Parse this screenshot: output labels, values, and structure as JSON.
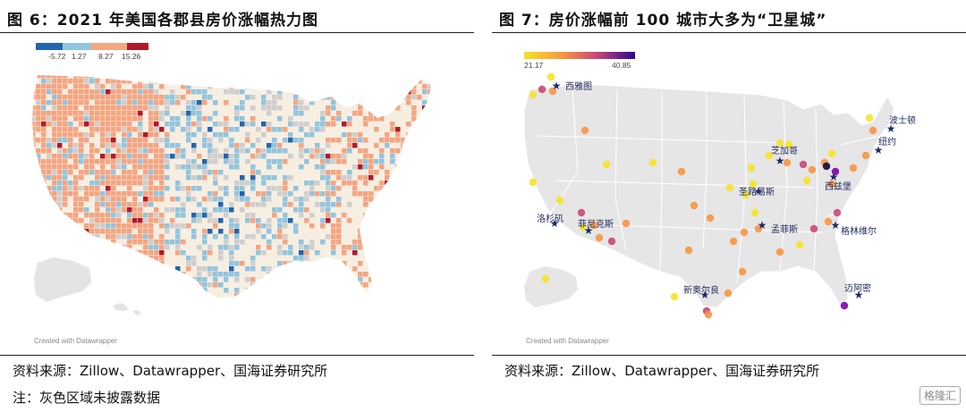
{
  "left": {
    "title": "图 6：2021 年美国各郡县房价涨幅热力图",
    "legend": {
      "ticks": [
        "-5.72",
        "1.27",
        "8.27",
        "15.26"
      ],
      "colors": [
        "#2166ac",
        "#92c5de",
        "#f4a582",
        "#b2182b"
      ]
    },
    "credit": "Created with Datawrapper",
    "source": "资料来源：Zillow、Datawrapper、国海证券研究所",
    "note": "注：灰色区域未披露数据"
  },
  "right": {
    "title": "图 7：房价涨幅前 100 城市大多为“卫星城”",
    "legend": {
      "min": "21.17",
      "max": "40.85"
    },
    "credit": "Created with Datawrapper",
    "source": "资料来源：Zillow、Datawrapper、国海证券研究所",
    "cities": [
      {
        "name": "西雅图"
      },
      {
        "name": "洛杉矶"
      },
      {
        "name": "菲尼克斯"
      },
      {
        "name": "芝加哥"
      },
      {
        "name": "圣路易斯"
      },
      {
        "name": "孟菲斯"
      },
      {
        "name": "西兹堡"
      },
      {
        "name": "格林维尔"
      },
      {
        "name": "波士顿"
      },
      {
        "name": "纽约"
      },
      {
        "name": "新奥尔良"
      },
      {
        "name": "迈阿密"
      }
    ]
  },
  "watermark": "格隆汇",
  "colors": {
    "land": "#e8e8e8",
    "beige": "#f7eee2",
    "nodata": "#cfcfcf",
    "star": "#1a2a6c"
  }
}
